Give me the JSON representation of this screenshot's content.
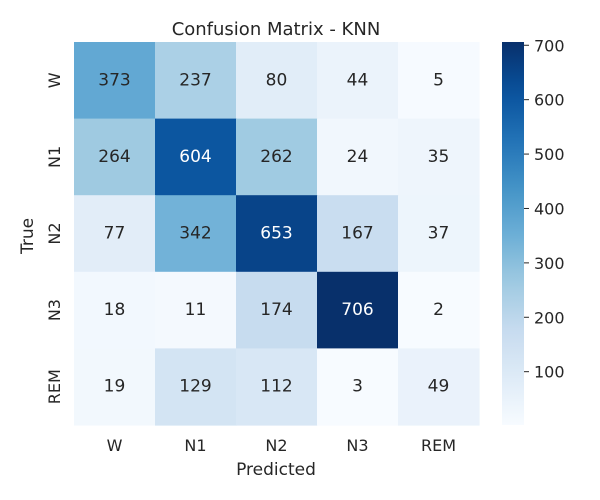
{
  "chart_data": {
    "type": "heatmap",
    "title": "Confusion Matrix - KNN",
    "xlabel": "Predicted",
    "ylabel": "True",
    "x_categories": [
      "W",
      "N1",
      "N2",
      "N3",
      "REM"
    ],
    "y_categories": [
      "W",
      "N1",
      "N2",
      "N3",
      "REM"
    ],
    "values": [
      [
        373,
        237,
        80,
        44,
        5
      ],
      [
        264,
        604,
        262,
        24,
        35
      ],
      [
        77,
        342,
        653,
        167,
        37
      ],
      [
        18,
        11,
        174,
        706,
        2
      ],
      [
        19,
        129,
        112,
        3,
        49
      ]
    ],
    "colormap": "Blues",
    "color_range": [
      2,
      706
    ],
    "colorbar_ticks": [
      100,
      200,
      300,
      400,
      500,
      600,
      700
    ],
    "grid": false,
    "colorbar_position": "right"
  }
}
